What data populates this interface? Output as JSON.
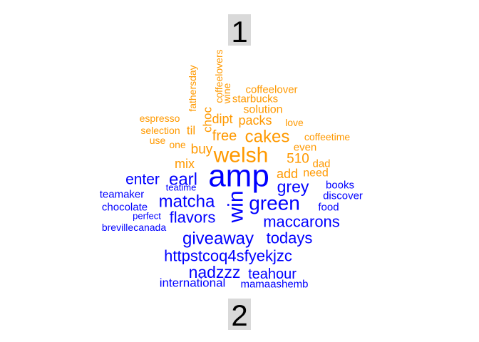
{
  "chart_data": {
    "type": "wordcloud",
    "colors": {
      "1": "#ff9900",
      "2": "#0000ff"
    },
    "groups": [
      {
        "label": "1",
        "color": "#ff9900",
        "words": [
          "welsh",
          "cakes",
          "free",
          "dipt",
          "packs",
          "solution",
          "starbucks",
          "coffeelover",
          "coffeelovers",
          "wine",
          "fathersday",
          "choc",
          "til",
          "espresso",
          "selection",
          "use",
          "one",
          "buy",
          "mix",
          "love",
          "coffeetime",
          "even",
          "510",
          "dad",
          "need",
          "add"
        ]
      },
      {
        "label": "2",
        "color": "#0000ff",
        "words": [
          "amp",
          "green",
          "win",
          "matcha",
          "enter",
          "earl",
          "grey",
          "flavors",
          "giveaway",
          "todays",
          "maccarons",
          "httpstcoq4sfyekjzc",
          "nadzzz",
          "teahour",
          "international",
          "mamaashemb",
          "books",
          "discover",
          "food",
          "teamaker",
          "teatime",
          "chocolate",
          "perfect",
          "brevillecanada"
        ]
      }
    ],
    "words": [
      {
        "text": "1",
        "group": "label"
      },
      {
        "text": "2",
        "group": "label"
      },
      {
        "text": "coffeelovers",
        "group": "1"
      },
      {
        "text": "fathersday",
        "group": "1"
      },
      {
        "text": "wine",
        "group": "1"
      },
      {
        "text": "coffeelover",
        "group": "1"
      },
      {
        "text": "starbucks",
        "group": "1"
      },
      {
        "text": "solution",
        "group": "1"
      },
      {
        "text": "choc",
        "group": "1"
      },
      {
        "text": "dipt",
        "group": "1"
      },
      {
        "text": "packs",
        "group": "1"
      },
      {
        "text": "espresso",
        "group": "1"
      },
      {
        "text": "love",
        "group": "1"
      },
      {
        "text": "selection",
        "group": "1"
      },
      {
        "text": "til",
        "group": "1"
      },
      {
        "text": "free",
        "group": "1"
      },
      {
        "text": "cakes",
        "group": "1"
      },
      {
        "text": "coffeetime",
        "group": "1"
      },
      {
        "text": "use",
        "group": "1"
      },
      {
        "text": "one",
        "group": "1"
      },
      {
        "text": "even",
        "group": "1"
      },
      {
        "text": "buy",
        "group": "1"
      },
      {
        "text": "welsh",
        "group": "1"
      },
      {
        "text": "510",
        "group": "1"
      },
      {
        "text": "mix",
        "group": "1"
      },
      {
        "text": "dad",
        "group": "1"
      },
      {
        "text": "add",
        "group": "1"
      },
      {
        "text": "need",
        "group": "1"
      },
      {
        "text": "amp",
        "group": "2"
      },
      {
        "text": "enter",
        "group": "2"
      },
      {
        "text": "earl",
        "group": "2"
      },
      {
        "text": "grey",
        "group": "2"
      },
      {
        "text": "teatime",
        "group": "2"
      },
      {
        "text": "books",
        "group": "2"
      },
      {
        "text": "teamaker",
        "group": "2"
      },
      {
        "text": "discover",
        "group": "2"
      },
      {
        "text": "matcha",
        "group": "2"
      },
      {
        "text": "green",
        "group": "2"
      },
      {
        "text": "win",
        "group": "2"
      },
      {
        "text": "chocolate",
        "group": "2"
      },
      {
        "text": "food",
        "group": "2"
      },
      {
        "text": "perfect",
        "group": "2"
      },
      {
        "text": "flavors",
        "group": "2"
      },
      {
        "text": "maccarons",
        "group": "2"
      },
      {
        "text": "brevillecanada",
        "group": "2"
      },
      {
        "text": "giveaway",
        "group": "2"
      },
      {
        "text": "todays",
        "group": "2"
      },
      {
        "text": "httpstcoq4sfyekjzc",
        "group": "2"
      },
      {
        "text": "nadzzz",
        "group": "2"
      },
      {
        "text": "teahour",
        "group": "2"
      },
      {
        "text": "international",
        "group": "2"
      },
      {
        "text": "mamaashemb",
        "group": "2"
      }
    ]
  }
}
